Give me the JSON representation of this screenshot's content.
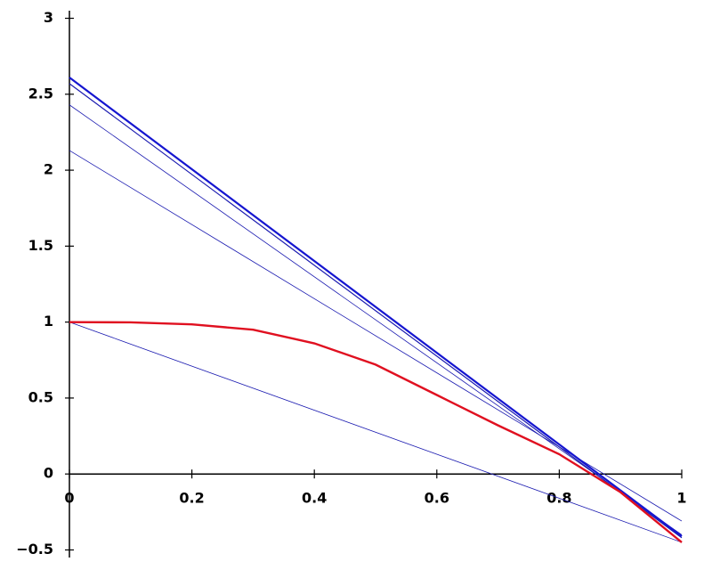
{
  "chart_data": {
    "type": "line",
    "xlim": [
      0,
      1
    ],
    "ylim": [
      -0.55,
      3.05
    ],
    "xticks": [
      0,
      0.2,
      0.4,
      0.6,
      0.8,
      1
    ],
    "yticks": [
      {
        "value": -0.5,
        "label": "−0.5"
      },
      0,
      0.5,
      1,
      1.5,
      2,
      2.5,
      3
    ],
    "series": [
      {
        "color": "#1a1ab0",
        "linewidth": 0.8,
        "x": [
          0,
          1
        ],
        "values": [
          1,
          -0.45
        ]
      },
      {
        "color": "#1a1ab0",
        "linewidth": 0.8,
        "x": [
          0,
          1
        ],
        "values": [
          2.13,
          -0.31
        ]
      },
      {
        "color": "#1a1ab0",
        "linewidth": 0.8,
        "x": [
          0,
          1
        ],
        "values": [
          2.43,
          -0.4
        ]
      },
      {
        "color": "#1a1ab0",
        "linewidth": 1.2,
        "x": [
          0,
          1
        ],
        "values": [
          2.57,
          -0.42
        ]
      },
      {
        "color": "#1515d0",
        "linewidth": 2.2,
        "x": [
          0,
          1
        ],
        "values": [
          2.61,
          -0.41
        ]
      },
      {
        "color": "#e01020",
        "linewidth": 2.4,
        "x": [
          0,
          0.1,
          0.2,
          0.3,
          0.4,
          0.5,
          0.6,
          0.7,
          0.8,
          0.9,
          1
        ],
        "values": [
          1,
          0.998,
          0.985,
          0.95,
          0.86,
          0.72,
          0.52,
          0.32,
          0.13,
          -0.12,
          -0.45
        ]
      }
    ]
  }
}
